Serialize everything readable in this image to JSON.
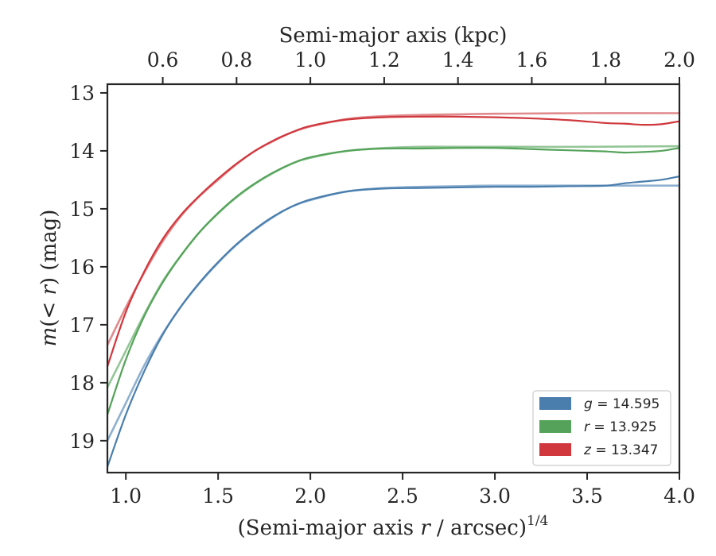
{
  "chart_data": {
    "type": "line",
    "title": "",
    "xlabel": "(Semi-major axis r / arcsec)^{1/4}",
    "xlabel_parts": [
      "(Semi-major axis ",
      "r",
      " / arcsec)",
      "1/4"
    ],
    "ylabel": "m(< r) (mag)",
    "ylabel_parts": [
      "m",
      "(< ",
      "r",
      ") (mag)"
    ],
    "top_xlabel": "Semi-major axis (kpc)",
    "xlim": [
      0.9,
      4.0
    ],
    "ylim": [
      19.55,
      12.85
    ],
    "y_inverted": true,
    "x_ticks": [
      1.0,
      1.5,
      2.0,
      2.5,
      3.0,
      3.5,
      4.0
    ],
    "x_tick_labels": [
      "1.0",
      "1.5",
      "2.0",
      "2.5",
      "3.0",
      "3.5",
      "4.0"
    ],
    "y_ticks": [
      13,
      14,
      15,
      16,
      17,
      18,
      19
    ],
    "y_tick_labels": [
      "13",
      "14",
      "15",
      "16",
      "17",
      "18",
      "19"
    ],
    "top_ticks": [
      0.6,
      0.8,
      1.0,
      1.2,
      1.4,
      1.6,
      1.8,
      2.0
    ],
    "top_tick_labels": [
      "0.6",
      "0.8",
      "1.0",
      "1.2",
      "1.4",
      "1.6",
      "1.8",
      "2.0"
    ],
    "top_tick_positions_x": [
      1.2,
      1.6,
      2.0,
      2.4,
      2.8,
      3.2,
      3.6,
      4.0
    ],
    "grid": false,
    "legend_position": "lower-right",
    "legend": [
      {
        "band": "g",
        "value": "14.595",
        "color": "#4a7ead"
      },
      {
        "band": "r",
        "value": "13.925",
        "color": "#55a35a"
      },
      {
        "band": "z",
        "value": "13.347",
        "color": "#d0383d"
      }
    ],
    "series": [
      {
        "band": "g",
        "kind": "model",
        "color": "#8fb0d0",
        "x": [
          0.9,
          1.0,
          1.1,
          1.2,
          1.3,
          1.4,
          1.5,
          1.6,
          1.7,
          1.8,
          1.9,
          2.0,
          2.2,
          2.4,
          2.6,
          2.8,
          3.0,
          3.5,
          4.0
        ],
        "y": [
          19.0,
          18.35,
          17.7,
          17.15,
          16.68,
          16.28,
          15.93,
          15.62,
          15.36,
          15.14,
          14.96,
          14.85,
          14.7,
          14.64,
          14.62,
          14.61,
          14.6,
          14.6,
          14.6
        ]
      },
      {
        "band": "g",
        "kind": "observed",
        "color": "#4a7ead",
        "x": [
          0.9,
          1.0,
          1.1,
          1.2,
          1.3,
          1.4,
          1.5,
          1.6,
          1.7,
          1.8,
          1.9,
          2.0,
          2.2,
          2.4,
          2.6,
          2.8,
          3.0,
          3.2,
          3.4,
          3.6,
          3.7,
          3.8,
          3.9,
          4.0
        ],
        "y": [
          19.45,
          18.55,
          17.8,
          17.17,
          16.68,
          16.27,
          15.92,
          15.61,
          15.35,
          15.13,
          14.96,
          14.84,
          14.7,
          14.65,
          14.64,
          14.63,
          14.62,
          14.62,
          14.61,
          14.6,
          14.56,
          14.53,
          14.5,
          14.44
        ]
      },
      {
        "band": "r",
        "kind": "model",
        "color": "#94c697",
        "x": [
          0.9,
          1.0,
          1.1,
          1.2,
          1.3,
          1.4,
          1.5,
          1.6,
          1.7,
          1.8,
          1.9,
          2.0,
          2.2,
          2.4,
          2.6,
          2.8,
          3.0,
          3.5,
          4.0
        ],
        "y": [
          18.08,
          17.45,
          16.82,
          16.25,
          15.8,
          15.4,
          15.08,
          14.8,
          14.57,
          14.38,
          14.22,
          14.12,
          14.0,
          13.95,
          13.93,
          13.93,
          13.93,
          13.93,
          13.92
        ]
      },
      {
        "band": "r",
        "kind": "observed",
        "color": "#55a35a",
        "x": [
          0.9,
          1.0,
          1.1,
          1.2,
          1.3,
          1.4,
          1.5,
          1.6,
          1.7,
          1.8,
          1.9,
          2.0,
          2.2,
          2.4,
          2.6,
          2.8,
          3.0,
          3.2,
          3.4,
          3.6,
          3.7,
          3.8,
          3.9,
          4.0
        ],
        "y": [
          18.55,
          17.6,
          16.85,
          16.27,
          15.8,
          15.4,
          15.07,
          14.79,
          14.56,
          14.37,
          14.22,
          14.11,
          14.0,
          13.96,
          13.96,
          13.95,
          13.95,
          13.97,
          13.99,
          14.01,
          14.03,
          14.02,
          14.0,
          13.95
        ]
      },
      {
        "band": "z",
        "kind": "model",
        "color": "#e08a8d",
        "x": [
          0.9,
          1.0,
          1.1,
          1.2,
          1.3,
          1.4,
          1.5,
          1.6,
          1.7,
          1.8,
          1.9,
          2.0,
          2.2,
          2.4,
          2.6,
          2.8,
          3.0,
          3.5,
          4.0
        ],
        "y": [
          17.35,
          16.7,
          16.1,
          15.56,
          15.12,
          14.78,
          14.5,
          14.23,
          14.0,
          13.83,
          13.68,
          13.58,
          13.45,
          13.4,
          13.38,
          13.37,
          13.36,
          13.35,
          13.35
        ]
      },
      {
        "band": "z",
        "kind": "observed",
        "color": "#d0383d",
        "x": [
          0.9,
          1.0,
          1.1,
          1.2,
          1.3,
          1.4,
          1.5,
          1.6,
          1.7,
          1.8,
          1.9,
          2.0,
          2.2,
          2.4,
          2.6,
          2.8,
          3.0,
          3.2,
          3.4,
          3.6,
          3.7,
          3.8,
          3.9,
          4.0
        ],
        "y": [
          17.72,
          16.78,
          16.08,
          15.52,
          15.1,
          14.77,
          14.48,
          14.22,
          14.0,
          13.82,
          13.68,
          13.57,
          13.46,
          13.42,
          13.41,
          13.41,
          13.42,
          13.44,
          13.47,
          13.52,
          13.53,
          13.55,
          13.54,
          13.49
        ]
      }
    ]
  }
}
